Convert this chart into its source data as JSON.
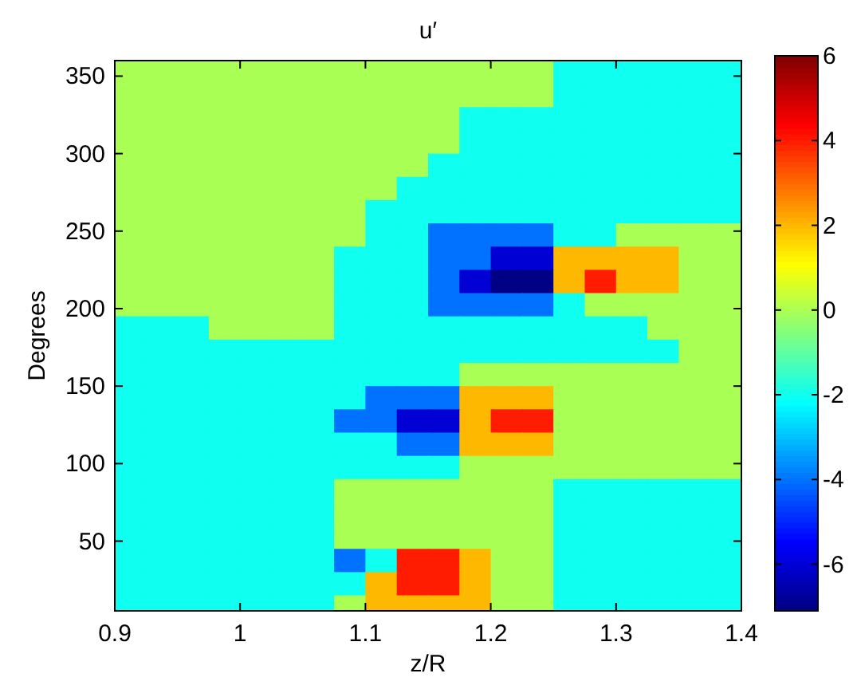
{
  "chart_data": {
    "type": "heatmap",
    "title": "u′",
    "xlabel": "z/R",
    "ylabel": "Degrees",
    "x": [
      0.9125,
      0.9375,
      0.9625,
      0.9875,
      1.0125,
      1.0375,
      1.0625,
      1.0875,
      1.1125,
      1.1375,
      1.1625,
      1.1875,
      1.2125,
      1.2375,
      1.2625,
      1.2875,
      1.3125,
      1.3375,
      1.3625,
      1.3875
    ],
    "y": [
      352.5,
      337.5,
      322.5,
      307.5,
      292.5,
      277.5,
      262.5,
      247.5,
      232.5,
      217.5,
      202.5,
      187.5,
      172.5,
      157.5,
      142.5,
      127.5,
      112.5,
      97.5,
      82.5,
      67.5,
      52.5,
      37.5,
      22.5,
      7.5
    ],
    "xlim": [
      0.9,
      1.4
    ],
    "xticks": [
      0.9,
      1,
      1.1,
      1.2,
      1.3,
      1.4
    ],
    "ylim": [
      5,
      360
    ],
    "yticks": [
      50,
      100,
      150,
      200,
      250,
      300,
      350
    ],
    "clim": [
      -7.1,
      6
    ],
    "cticks": [
      -6,
      -4,
      -2,
      0,
      2,
      4,
      6
    ],
    "cells": [
      [
        0,
        0,
        0,
        0,
        0,
        0,
        0,
        0,
        0,
        0,
        0,
        0,
        0,
        0,
        -2,
        -2,
        -2,
        -2,
        -2,
        -2
      ],
      [
        0,
        0,
        0,
        0,
        0,
        0,
        0,
        0,
        0,
        0,
        0,
        0,
        0,
        0,
        -2,
        -2,
        -2,
        -2,
        -2,
        -2
      ],
      [
        0,
        0,
        0,
        0,
        0,
        0,
        0,
        0,
        0,
        0,
        0,
        -2,
        -2,
        -2,
        -2,
        -2,
        -2,
        -2,
        -2,
        -2
      ],
      [
        0,
        0,
        0,
        0,
        0,
        0,
        0,
        0,
        0,
        0,
        0,
        -2,
        -2,
        -2,
        -2,
        -2,
        -2,
        -2,
        -2,
        -2
      ],
      [
        0,
        0,
        0,
        0,
        0,
        0,
        0,
        0,
        0,
        0,
        -2,
        -2,
        -2,
        -2,
        -2,
        -2,
        -2,
        -2,
        -2,
        -2
      ],
      [
        0,
        0,
        0,
        0,
        0,
        0,
        0,
        0,
        0,
        -2,
        -2,
        -2,
        -2,
        -2,
        -2,
        -2,
        -2,
        -2,
        -2,
        -2
      ],
      [
        0,
        0,
        0,
        0,
        0,
        0,
        0,
        0,
        -2,
        -2,
        -2,
        -2,
        -2,
        -2,
        -2,
        -2,
        -2,
        -2,
        -2,
        -2
      ],
      [
        0,
        0,
        0,
        0,
        0,
        0,
        0,
        0,
        -2,
        -2,
        -4,
        -4,
        -4,
        -4,
        -2,
        -2,
        0,
        0,
        0,
        0
      ],
      [
        0,
        0,
        0,
        0,
        0,
        0,
        0,
        -2,
        -2,
        -2,
        -4,
        -4,
        -6,
        -6,
        2,
        2,
        2,
        2,
        0,
        0
      ],
      [
        0,
        0,
        0,
        0,
        0,
        0,
        0,
        -2,
        -2,
        -2,
        -4,
        -6,
        -7,
        -7,
        2,
        4,
        2,
        2,
        0,
        0
      ],
      [
        0,
        0,
        0,
        0,
        0,
        0,
        0,
        -2,
        -2,
        -2,
        -4,
        -4,
        -4,
        -4,
        -2,
        0,
        0,
        0,
        0,
        0
      ],
      [
        -2,
        -2,
        -2,
        0,
        0,
        0,
        0,
        -2,
        -2,
        -2,
        -2,
        -2,
        -2,
        -2,
        -2,
        -2,
        -2,
        0,
        0,
        0
      ],
      [
        -2,
        -2,
        -2,
        -2,
        -2,
        -2,
        -2,
        -2,
        -2,
        -2,
        -2,
        -2,
        -2,
        -2,
        -2,
        -2,
        -2,
        -2,
        0,
        0
      ],
      [
        -2,
        -2,
        -2,
        -2,
        -2,
        -2,
        -2,
        -2,
        -2,
        -2,
        -2,
        0,
        0,
        0,
        0,
        0,
        0,
        0,
        0,
        0
      ],
      [
        -2,
        -2,
        -2,
        -2,
        -2,
        -2,
        -2,
        -2,
        -4,
        -4,
        -4,
        2,
        2,
        2,
        0,
        0,
        0,
        0,
        0,
        0
      ],
      [
        -2,
        -2,
        -2,
        -2,
        -2,
        -2,
        -2,
        -4,
        -4,
        -6,
        -6,
        2,
        4,
        4,
        0,
        0,
        0,
        0,
        0,
        0
      ],
      [
        -2,
        -2,
        -2,
        -2,
        -2,
        -2,
        -2,
        -2,
        -2,
        -4,
        -4,
        2,
        2,
        2,
        0,
        0,
        0,
        0,
        0,
        0
      ],
      [
        -2,
        -2,
        -2,
        -2,
        -2,
        -2,
        -2,
        -2,
        -2,
        -2,
        -2,
        0,
        0,
        0,
        0,
        0,
        0,
        0,
        0,
        0
      ],
      [
        -2,
        -2,
        -2,
        -2,
        -2,
        -2,
        -2,
        0,
        0,
        0,
        0,
        0,
        0,
        0,
        -2,
        -2,
        -2,
        -2,
        -2,
        -2
      ],
      [
        -2,
        -2,
        -2,
        -2,
        -2,
        -2,
        -2,
        0,
        0,
        0,
        0,
        0,
        0,
        0,
        -2,
        -2,
        -2,
        -2,
        -2,
        -2
      ],
      [
        -2,
        -2,
        -2,
        -2,
        -2,
        -2,
        -2,
        0,
        0,
        0,
        0,
        0,
        0,
        0,
        -2,
        -2,
        -2,
        -2,
        -2,
        -2
      ],
      [
        -2,
        -2,
        -2,
        -2,
        -2,
        -2,
        -2,
        -4,
        -2,
        4,
        4,
        2,
        0,
        0,
        -2,
        -2,
        -2,
        -2,
        -2,
        -2
      ],
      [
        -2,
        -2,
        -2,
        -2,
        -2,
        -2,
        -2,
        -2,
        2,
        4,
        4,
        2,
        0,
        0,
        -2,
        -2,
        -2,
        -2,
        -2,
        -2
      ],
      [
        -2,
        -2,
        -2,
        -2,
        -2,
        -2,
        -2,
        0,
        2,
        2,
        2,
        2,
        0,
        0,
        -2,
        -2,
        -2,
        -2,
        -2,
        -2
      ]
    ]
  }
}
